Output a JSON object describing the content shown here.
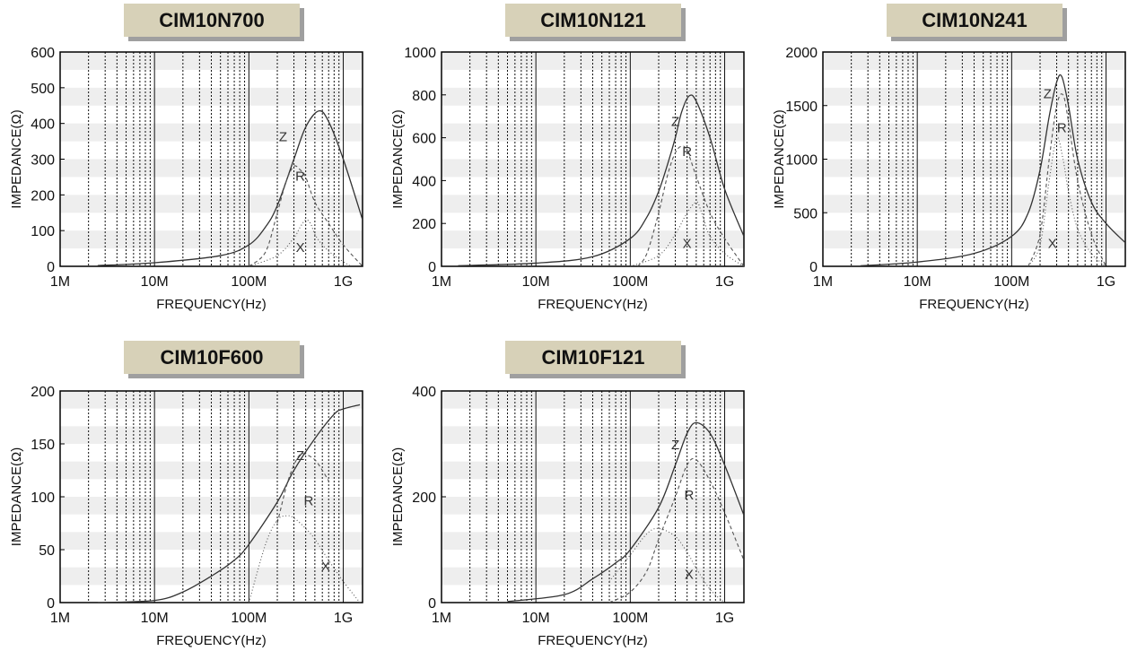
{
  "chart_data": [
    {
      "type": "line",
      "title": "CIM10N700",
      "xlabel": "FREQUENCY(Hz)",
      "ylabel": "IMPEDANCE(Ω)",
      "x_scale": "log",
      "xlim": [
        "1M",
        "1.6G"
      ],
      "x_tick_labels": [
        "1M",
        "10M",
        "100M",
        "1G"
      ],
      "ylim": [
        0,
        600
      ],
      "y_ticks": [
        0,
        100,
        200,
        300,
        400,
        500,
        600
      ],
      "grid": "dotted vertical lines, alternating gray horizontal bands",
      "series": [
        {
          "name": "Z",
          "style": "solid",
          "x": [
            "2.5M",
            "10M",
            "50M",
            "100M",
            "150M",
            "200M",
            "300M",
            "400M",
            "550M",
            "700M",
            "1G",
            "1.6G"
          ],
          "values": [
            2,
            10,
            30,
            60,
            110,
            170,
            300,
            390,
            435,
            405,
            300,
            130
          ]
        },
        {
          "name": "R",
          "style": "dashed",
          "x": [
            "100M",
            "150M",
            "200M",
            "250M",
            "300M",
            "350M",
            "400M",
            "500M",
            "700M",
            "1G",
            "1.6G"
          ],
          "values": [
            0,
            40,
            150,
            240,
            280,
            270,
            250,
            180,
            120,
            60,
            0
          ]
        },
        {
          "name": "X",
          "style": "dotted",
          "x": [
            "100M",
            "200M",
            "300M",
            "350M",
            "400M",
            "450M",
            "500M",
            "600M",
            "800M",
            "1.2G"
          ],
          "values": [
            0,
            30,
            80,
            110,
            130,
            120,
            90,
            60,
            30,
            0
          ]
        }
      ],
      "annotations": [
        {
          "text": "Z",
          "x": "230M",
          "y": 365
        },
        {
          "text": "R",
          "x": "350M",
          "y": 255
        },
        {
          "text": "X",
          "x": "350M",
          "y": 55
        }
      ]
    },
    {
      "type": "line",
      "title": "CIM10N121",
      "xlabel": "FREQUENCY(Hz)",
      "ylabel": "IMPEDANCE(Ω)",
      "x_scale": "log",
      "xlim": [
        "1M",
        "1.6G"
      ],
      "x_tick_labels": [
        "1M",
        "10M",
        "100M",
        "1G"
      ],
      "ylim": [
        0,
        1000
      ],
      "y_ticks": [
        0,
        200,
        400,
        600,
        800,
        1000
      ],
      "grid": "dotted vertical lines, alternating gray horizontal bands",
      "series": [
        {
          "name": "Z",
          "style": "solid",
          "x": [
            "1.5M",
            "10M",
            "40M",
            "100M",
            "150M",
            "200M",
            "250M",
            "300M",
            "350M",
            "420M",
            "500M",
            "700M",
            "1G",
            "1.6G"
          ],
          "values": [
            3,
            15,
            45,
            130,
            230,
            350,
            480,
            600,
            720,
            795,
            770,
            600,
            360,
            140
          ]
        },
        {
          "name": "R",
          "style": "dashed",
          "x": [
            "120M",
            "150M",
            "200M",
            "250M",
            "300M",
            "350M",
            "400M",
            "500M",
            "700M",
            "1G",
            "1.6G"
          ],
          "values": [
            0,
            60,
            250,
            430,
            530,
            560,
            540,
            420,
            250,
            130,
            0
          ]
        },
        {
          "name": "X",
          "style": "dotted",
          "x": [
            "100M",
            "200M",
            "300M",
            "400M",
            "500M",
            "550M",
            "600M",
            "700M",
            "1G",
            "1.6G"
          ],
          "values": [
            0,
            50,
            150,
            250,
            300,
            270,
            220,
            140,
            60,
            0
          ]
        }
      ],
      "annotations": [
        {
          "text": "Z",
          "x": "300M",
          "y": 680
        },
        {
          "text": "R",
          "x": "400M",
          "y": 540
        },
        {
          "text": "X",
          "x": "400M",
          "y": 110
        }
      ]
    },
    {
      "type": "line",
      "title": "CIM10N241",
      "xlabel": "FREQUENCY(Hz)",
      "ylabel": "IMPEDANCE(Ω)",
      "x_scale": "log",
      "xlim": [
        "1M",
        "1.6G"
      ],
      "x_tick_labels": [
        "1M",
        "10M",
        "100M",
        "1G"
      ],
      "ylim": [
        0,
        2000
      ],
      "y_ticks": [
        0,
        500,
        1000,
        1500,
        2000
      ],
      "grid": "dotted vertical lines, alternating gray horizontal bands",
      "series": [
        {
          "name": "Z",
          "style": "solid",
          "x": [
            "2.5M",
            "10M",
            "40M",
            "100M",
            "150M",
            "200M",
            "250M",
            "300M",
            "340M",
            "400M",
            "500M",
            "700M",
            "1G",
            "1.6G"
          ],
          "values": [
            5,
            40,
            120,
            280,
            500,
            900,
            1400,
            1720,
            1770,
            1500,
            1000,
            600,
            400,
            220
          ]
        },
        {
          "name": "R",
          "style": "dashed",
          "x": [
            "150M",
            "200M",
            "250M",
            "300M",
            "350M",
            "400M",
            "500M",
            "700M",
            "1G"
          ],
          "values": [
            0,
            300,
            1000,
            1500,
            1600,
            1350,
            800,
            300,
            0
          ]
        },
        {
          "name": "X",
          "style": "dotted",
          "x": [
            "150M",
            "200M",
            "250M",
            "300M",
            "350M",
            "400M",
            "500M",
            "700M",
            "1G"
          ],
          "values": [
            0,
            200,
            800,
            1200,
            1000,
            700,
            350,
            120,
            0
          ]
        }
      ],
      "annotations": [
        {
          "text": "Z",
          "x": "240M",
          "y": 1620
        },
        {
          "text": "R",
          "x": "340M",
          "y": 1300
        },
        {
          "text": "X",
          "x": "270M",
          "y": 220
        }
      ]
    },
    {
      "type": "line",
      "title": "CIM10F600",
      "xlabel": "FREQUENCY(Hz)",
      "ylabel": "IMPEDANCE(Ω)",
      "x_scale": "log",
      "xlim": [
        "1M",
        "1.6G"
      ],
      "x_tick_labels": [
        "1M",
        "10M",
        "100M",
        "1G"
      ],
      "ylim": [
        0,
        200
      ],
      "y_ticks": [
        0,
        50,
        100,
        150,
        200
      ],
      "grid": "dotted vertical lines, alternating gray horizontal bands",
      "series": [
        {
          "name": "Z",
          "style": "solid",
          "x": [
            "2.5M",
            "10M",
            "20M",
            "40M",
            "70M",
            "100M",
            "200M",
            "300M",
            "500M",
            "800M",
            "1G",
            "1.5G"
          ],
          "values": [
            0,
            2,
            10,
            25,
            40,
            55,
            95,
            125,
            155,
            178,
            183,
            187
          ]
        },
        {
          "name": "R",
          "style": "dashed",
          "x": [
            "200M",
            "250M",
            "300M",
            "350M",
            "400M",
            "500M",
            "600M",
            "700M"
          ],
          "values": [
            75,
            110,
            130,
            140,
            140,
            135,
            125,
            115
          ]
        },
        {
          "name": "X",
          "style": "dotted",
          "x": [
            "100M",
            "150M",
            "200M",
            "250M",
            "300M",
            "400M",
            "500M",
            "700M",
            "1G",
            "1.5G"
          ],
          "values": [
            0,
            55,
            78,
            82,
            80,
            70,
            60,
            40,
            20,
            0
          ]
        }
      ],
      "annotations": [
        {
          "text": "Z",
          "x": "350M",
          "y": 140
        },
        {
          "text": "R",
          "x": "430M",
          "y": 97
        },
        {
          "text": "X",
          "x": "650M",
          "y": 35
        }
      ]
    },
    {
      "type": "line",
      "title": "CIM10F121",
      "xlabel": "FREQUENCY(Hz)",
      "ylabel": "IMPEDANCE(Ω)",
      "x_scale": "log",
      "xlim": [
        "1M",
        "1.6G"
      ],
      "x_tick_labels": [
        "1M",
        "10M",
        "100M",
        "1G"
      ],
      "ylim": [
        0,
        400
      ],
      "y_ticks": [
        0,
        200,
        400
      ],
      "grid": "dotted vertical lines, alternating gray horizontal bands",
      "series": [
        {
          "name": "Z",
          "style": "solid",
          "x": [
            "5M",
            "20M",
            "40M",
            "70M",
            "100M",
            "200M",
            "300M",
            "400M",
            "500M",
            "700M",
            "1G",
            "1.6G"
          ],
          "values": [
            2,
            15,
            45,
            75,
            100,
            180,
            260,
            320,
            340,
            320,
            260,
            165
          ]
        },
        {
          "name": "R",
          "style": "dashed",
          "x": [
            "60M",
            "100M",
            "150M",
            "200M",
            "300M",
            "400M",
            "500M",
            "700M",
            "1G",
            "1.6G"
          ],
          "values": [
            0,
            20,
            60,
            120,
            200,
            260,
            270,
            230,
            170,
            80
          ]
        },
        {
          "name": "X",
          "style": "dotted",
          "x": [
            "60M",
            "100M",
            "150M",
            "200M",
            "300M",
            "400M",
            "500M",
            "700M",
            "1G"
          ],
          "values": [
            40,
            90,
            130,
            140,
            125,
            95,
            65,
            25,
            0
          ]
        }
      ],
      "annotations": [
        {
          "text": "Z",
          "x": "300M",
          "y": 300
        },
        {
          "text": "R",
          "x": "420M",
          "y": 205
        },
        {
          "text": "X",
          "x": "420M",
          "y": 55
        }
      ]
    }
  ]
}
